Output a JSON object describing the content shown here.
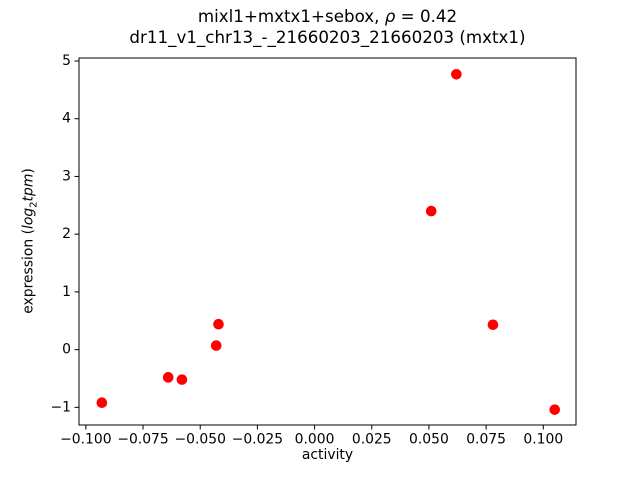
{
  "title": {
    "line1_prefix": "mixl1+mxtx1+sebox, ",
    "line1_rho": "ρ",
    "line1_rest": " = 0.42",
    "line2": "dr11_v1_chr13_-_21660203_21660203 (mxtx1)"
  },
  "axes": {
    "xlabel": "activity",
    "ylabel_prefix": "expression (",
    "ylabel_log": "log",
    "ylabel_sub": "2",
    "ylabel_tpm": "tpm",
    "ylabel_suffix": ")"
  },
  "chart_data": {
    "type": "scatter",
    "title": "mixl1+mxtx1+sebox, ρ = 0.42 — dr11_v1_chr13_-_21660203_21660203 (mxtx1)",
    "xlabel": "activity",
    "ylabel": "expression (log2 tpm)",
    "grid": false,
    "legend": "none",
    "marker_color": "#ff0000",
    "marker_radius_px": 5.3,
    "spine_color": "#000000",
    "xlim": [
      -0.103,
      0.1143
    ],
    "ylim": [
      -1.306,
      5.052
    ],
    "xticks": [
      -0.1,
      -0.075,
      -0.05,
      -0.025,
      0.0,
      0.025,
      0.05,
      0.075,
      0.1
    ],
    "xtick_labels": [
      "−0.100",
      "−0.075",
      "−0.050",
      "−0.025",
      "0.000",
      "0.025",
      "0.050",
      "0.075",
      "0.100"
    ],
    "yticks": [
      -1,
      0,
      1,
      2,
      3,
      4,
      5
    ],
    "ytick_labels": [
      "−1",
      "0",
      "1",
      "2",
      "3",
      "4",
      "5"
    ],
    "points": [
      {
        "x": -0.093,
        "y": -0.92
      },
      {
        "x": -0.064,
        "y": -0.48
      },
      {
        "x": -0.058,
        "y": -0.52
      },
      {
        "x": -0.043,
        "y": 0.07
      },
      {
        "x": -0.042,
        "y": 0.44
      },
      {
        "x": 0.051,
        "y": 2.4
      },
      {
        "x": 0.062,
        "y": 4.77
      },
      {
        "x": 0.078,
        "y": 0.43
      },
      {
        "x": 0.105,
        "y": -1.04
      }
    ]
  }
}
